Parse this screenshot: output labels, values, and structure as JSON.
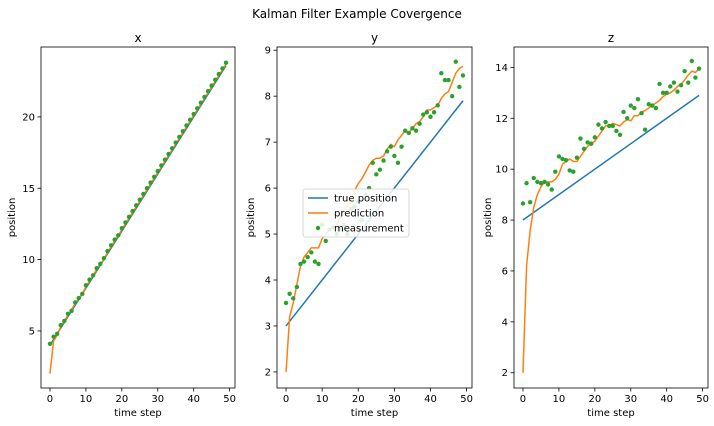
{
  "figure": {
    "suptitle": "Kalman Filter Example Covergence"
  },
  "chart_data": [
    {
      "type": "line",
      "title": "x",
      "xlabel": "time step",
      "ylabel": "position",
      "xlim": [
        -2.5,
        51.5
      ],
      "ylim": [
        1.0,
        24.9
      ],
      "xticks": [
        0,
        10,
        20,
        30,
        40,
        50
      ],
      "yticks": [
        5,
        10,
        15,
        20
      ],
      "grid": false,
      "series": [
        {
          "name": "true position",
          "kind": "line",
          "color": "#1f77b4",
          "x": [
            0,
            1,
            2,
            3,
            4,
            5,
            6,
            7,
            8,
            9,
            10,
            11,
            12,
            13,
            14,
            15,
            16,
            17,
            18,
            19,
            20,
            21,
            22,
            23,
            24,
            25,
            26,
            27,
            28,
            29,
            30,
            31,
            32,
            33,
            34,
            35,
            36,
            37,
            38,
            39,
            40,
            41,
            42,
            43,
            44,
            45,
            46,
            47,
            48,
            49
          ],
          "y": [
            4.0,
            4.4,
            4.8,
            5.2,
            5.6,
            6.0,
            6.4,
            6.8,
            7.2,
            7.6,
            8.0,
            8.4,
            8.8,
            9.2,
            9.6,
            10.0,
            10.4,
            10.8,
            11.2,
            11.6,
            12.0,
            12.4,
            12.8,
            13.2,
            13.6,
            14.0,
            14.4,
            14.8,
            15.2,
            15.6,
            16.0,
            16.4,
            16.8,
            17.2,
            17.6,
            18.0,
            18.4,
            18.8,
            19.2,
            19.6,
            20.0,
            20.4,
            20.8,
            21.2,
            21.6,
            22.0,
            22.4,
            22.8,
            23.2,
            23.6
          ]
        },
        {
          "name": "prediction",
          "kind": "line",
          "color": "#ff7f0e",
          "x": [
            0,
            1,
            2,
            3,
            4,
            5,
            6,
            7,
            8,
            9,
            10,
            11,
            12,
            13,
            14,
            15,
            16,
            17,
            18,
            19,
            20,
            21,
            22,
            23,
            24,
            25,
            26,
            27,
            28,
            29,
            30,
            31,
            32,
            33,
            34,
            35,
            36,
            37,
            38,
            39,
            40,
            41,
            42,
            43,
            44,
            45,
            46,
            47,
            48,
            49
          ],
          "y": [
            2.0,
            4.3,
            4.7,
            5.3,
            5.7,
            6.1,
            6.5,
            6.9,
            7.3,
            7.6,
            8.1,
            8.5,
            8.9,
            9.3,
            9.7,
            10.0,
            10.5,
            10.9,
            11.3,
            11.7,
            12.1,
            12.5,
            12.9,
            13.3,
            13.7,
            14.1,
            14.5,
            14.9,
            15.3,
            15.7,
            16.1,
            16.5,
            16.9,
            17.3,
            17.7,
            18.1,
            18.5,
            18.9,
            19.3,
            19.7,
            20.1,
            20.5,
            20.9,
            21.3,
            21.7,
            22.1,
            22.5,
            22.9,
            23.3,
            23.7
          ]
        },
        {
          "name": "measurement",
          "kind": "scatter",
          "color": "#2ca02c",
          "x": [
            0,
            1,
            2,
            3,
            4,
            5,
            6,
            7,
            8,
            9,
            10,
            11,
            12,
            13,
            14,
            15,
            16,
            17,
            18,
            19,
            20,
            21,
            22,
            23,
            24,
            25,
            26,
            27,
            28,
            29,
            30,
            31,
            32,
            33,
            34,
            35,
            36,
            37,
            38,
            39,
            40,
            41,
            42,
            43,
            44,
            45,
            46,
            47,
            48,
            49
          ],
          "y": [
            4.1,
            4.6,
            4.8,
            5.4,
            5.7,
            6.2,
            6.4,
            7.0,
            7.3,
            7.6,
            8.2,
            8.6,
            8.9,
            9.4,
            9.7,
            10.1,
            10.6,
            11.0,
            11.4,
            11.7,
            12.2,
            12.6,
            13.0,
            13.4,
            13.8,
            14.2,
            14.6,
            15.0,
            15.4,
            15.8,
            16.2,
            16.6,
            17.0,
            17.4,
            17.8,
            18.2,
            18.6,
            19.0,
            19.4,
            19.8,
            20.2,
            20.6,
            21.0,
            21.4,
            21.8,
            22.2,
            22.6,
            23.0,
            23.4,
            23.8
          ]
        }
      ]
    },
    {
      "type": "line",
      "title": "y",
      "xlabel": "time step",
      "ylabel": "position",
      "xlim": [
        -2.5,
        51.5
      ],
      "ylim": [
        1.65,
        9.07
      ],
      "xticks": [
        0,
        10,
        20,
        30,
        40,
        50
      ],
      "yticks": [
        2,
        3,
        4,
        5,
        6,
        7,
        8,
        9
      ],
      "grid": false,
      "legend": "center-left",
      "series": [
        {
          "name": "true position",
          "kind": "line",
          "color": "#1f77b4",
          "x": [
            0,
            49
          ],
          "y": [
            3.0,
            7.9
          ]
        },
        {
          "name": "prediction",
          "kind": "line",
          "color": "#ff7f0e",
          "x": [
            0,
            1,
            2,
            3,
            4,
            5,
            6,
            7,
            8,
            9,
            10,
            11,
            12,
            13,
            14,
            15,
            16,
            17,
            18,
            19,
            20,
            21,
            22,
            23,
            24,
            25,
            26,
            27,
            28,
            29,
            30,
            31,
            32,
            33,
            34,
            35,
            36,
            37,
            38,
            39,
            40,
            41,
            42,
            43,
            44,
            45,
            46,
            47,
            48,
            49
          ],
          "y": [
            2.0,
            3.2,
            3.5,
            3.9,
            4.3,
            4.5,
            4.6,
            4.7,
            4.7,
            4.7,
            4.9,
            5.0,
            5.1,
            5.15,
            5.2,
            5.35,
            5.5,
            5.6,
            5.75,
            5.95,
            6.1,
            6.2,
            6.35,
            6.5,
            6.6,
            6.65,
            6.65,
            6.7,
            6.85,
            6.95,
            6.9,
            7.05,
            7.15,
            7.25,
            7.2,
            7.3,
            7.4,
            7.45,
            7.55,
            7.7,
            7.7,
            7.75,
            7.8,
            7.95,
            8.05,
            8.1,
            8.3,
            8.5,
            8.6,
            8.65
          ]
        },
        {
          "name": "measurement",
          "kind": "scatter",
          "color": "#2ca02c",
          "x": [
            0,
            1,
            2,
            3,
            4,
            5,
            6,
            7,
            8,
            9,
            10,
            11,
            12,
            13,
            14,
            15,
            16,
            17,
            18,
            19,
            20,
            21,
            22,
            23,
            24,
            25,
            26,
            27,
            28,
            29,
            30,
            31,
            32,
            33,
            34,
            35,
            36,
            37,
            38,
            39,
            40,
            41,
            42,
            43,
            44,
            45,
            46,
            47,
            48,
            49
          ],
          "y": [
            3.5,
            3.7,
            3.6,
            3.85,
            4.35,
            4.4,
            4.5,
            4.6,
            4.4,
            4.35,
            5.2,
            4.85,
            5.1,
            5.15,
            5.0,
            5.1,
            5.2,
            5.0,
            5.55,
            5.6,
            5.7,
            5.3,
            5.85,
            6.0,
            6.55,
            6.3,
            6.4,
            6.6,
            6.8,
            6.9,
            6.7,
            6.55,
            6.9,
            7.25,
            7.2,
            7.3,
            7.25,
            7.4,
            7.6,
            7.65,
            7.55,
            7.65,
            7.8,
            8.5,
            8.35,
            8.35,
            8.0,
            8.75,
            8.2,
            8.45
          ]
        }
      ]
    },
    {
      "type": "line",
      "title": "z",
      "xlabel": "time step",
      "ylabel": "position",
      "xlim": [
        -2.5,
        51.5
      ],
      "ylim": [
        1.4,
        14.8
      ],
      "xticks": [
        0,
        10,
        20,
        30,
        40,
        50
      ],
      "yticks": [
        2,
        4,
        6,
        8,
        10,
        12,
        14
      ],
      "grid": false,
      "series": [
        {
          "name": "true position",
          "kind": "line",
          "color": "#1f77b4",
          "x": [
            0,
            49
          ],
          "y": [
            8.0,
            12.9
          ]
        },
        {
          "name": "prediction",
          "kind": "line",
          "color": "#ff7f0e",
          "x": [
            0,
            1,
            2,
            3,
            4,
            5,
            6,
            7,
            8,
            9,
            10,
            11,
            12,
            13,
            14,
            15,
            16,
            17,
            18,
            19,
            20,
            21,
            22,
            23,
            24,
            25,
            26,
            27,
            28,
            29,
            30,
            31,
            32,
            33,
            34,
            35,
            36,
            37,
            38,
            39,
            40,
            41,
            42,
            43,
            44,
            45,
            46,
            47,
            48,
            49
          ],
          "y": [
            2.0,
            6.2,
            7.6,
            8.5,
            9.0,
            9.3,
            9.5,
            9.5,
            9.5,
            9.6,
            9.8,
            10.2,
            10.3,
            10.4,
            10.3,
            10.3,
            10.5,
            10.7,
            10.9,
            11.0,
            11.1,
            11.3,
            11.5,
            11.7,
            11.7,
            11.8,
            11.75,
            11.7,
            11.85,
            11.95,
            11.9,
            12.1,
            12.1,
            12.25,
            12.3,
            12.4,
            12.5,
            12.6,
            12.7,
            12.85,
            12.95,
            13.0,
            13.1,
            13.25,
            13.35,
            13.5,
            13.7,
            13.85,
            13.8,
            13.95
          ]
        },
        {
          "name": "measurement",
          "kind": "scatter",
          "color": "#2ca02c",
          "x": [
            0,
            1,
            2,
            3,
            4,
            5,
            6,
            7,
            8,
            9,
            10,
            11,
            12,
            13,
            14,
            15,
            16,
            17,
            18,
            19,
            20,
            21,
            22,
            23,
            24,
            25,
            26,
            27,
            28,
            29,
            30,
            31,
            32,
            33,
            34,
            35,
            36,
            37,
            38,
            39,
            40,
            41,
            42,
            43,
            44,
            45,
            46,
            47,
            48,
            49
          ],
          "y": [
            8.65,
            9.45,
            8.7,
            9.65,
            9.5,
            9.45,
            9.5,
            9.4,
            9.2,
            9.9,
            10.5,
            10.4,
            10.35,
            9.95,
            9.9,
            10.45,
            11.2,
            10.8,
            11.05,
            11.0,
            11.25,
            11.75,
            11.6,
            11.85,
            11.7,
            11.7,
            11.5,
            11.35,
            12.25,
            12.0,
            12.5,
            12.4,
            12.75,
            12.2,
            11.55,
            12.55,
            12.5,
            12.4,
            13.35,
            13.0,
            13.0,
            13.25,
            13.4,
            13.05,
            13.3,
            13.85,
            13.4,
            14.25,
            13.6,
            13.95
          ]
        }
      ]
    }
  ]
}
